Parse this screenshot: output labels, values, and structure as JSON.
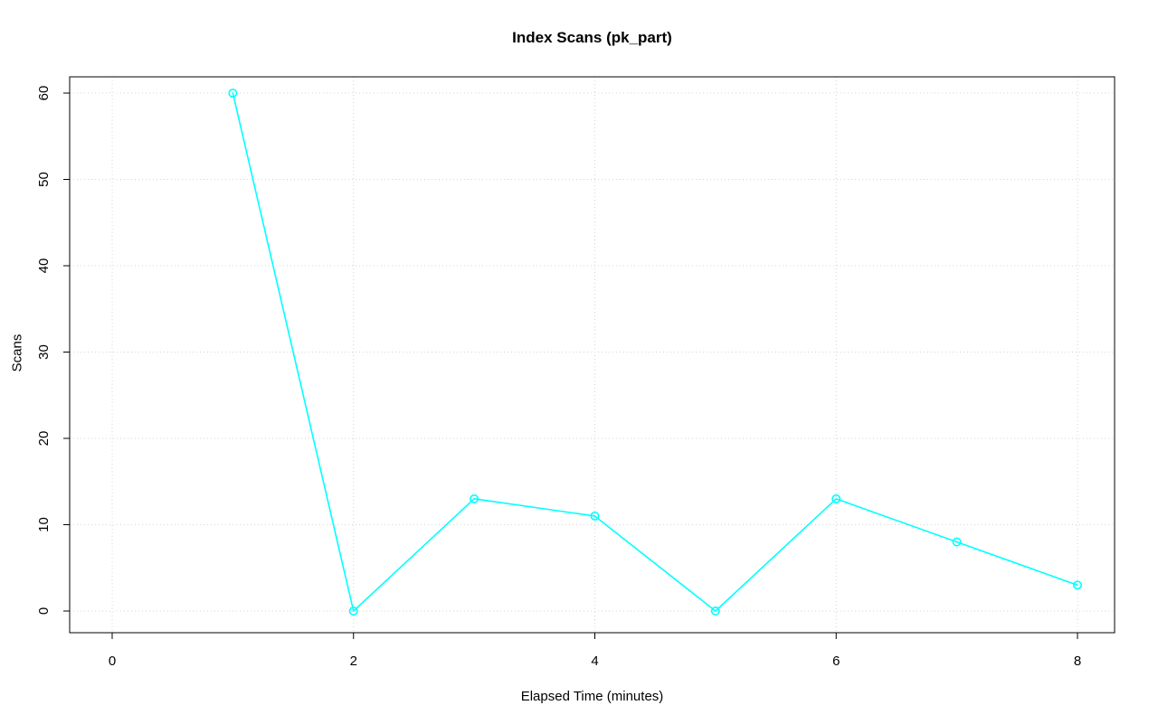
{
  "chart_data": {
    "type": "line",
    "title": "Index Scans (pk_part)",
    "xlabel": "Elapsed Time (minutes)",
    "ylabel": "Scans",
    "x": [
      1,
      2,
      3,
      4,
      5,
      6,
      7,
      8
    ],
    "values": [
      60,
      0,
      13,
      11,
      0,
      13,
      8,
      3
    ],
    "xlim": [
      0,
      8
    ],
    "ylim": [
      0,
      60
    ],
    "xticks": [
      0,
      2,
      4,
      6,
      8
    ],
    "yticks": [
      0,
      10,
      20,
      30,
      40,
      50,
      60
    ],
    "grid": true,
    "legend": "none",
    "line_color": "#00ffff",
    "marker": "open-circle",
    "grid_color": "#d4d4d4",
    "axis_color": "#000000",
    "background": "#ffffff"
  }
}
